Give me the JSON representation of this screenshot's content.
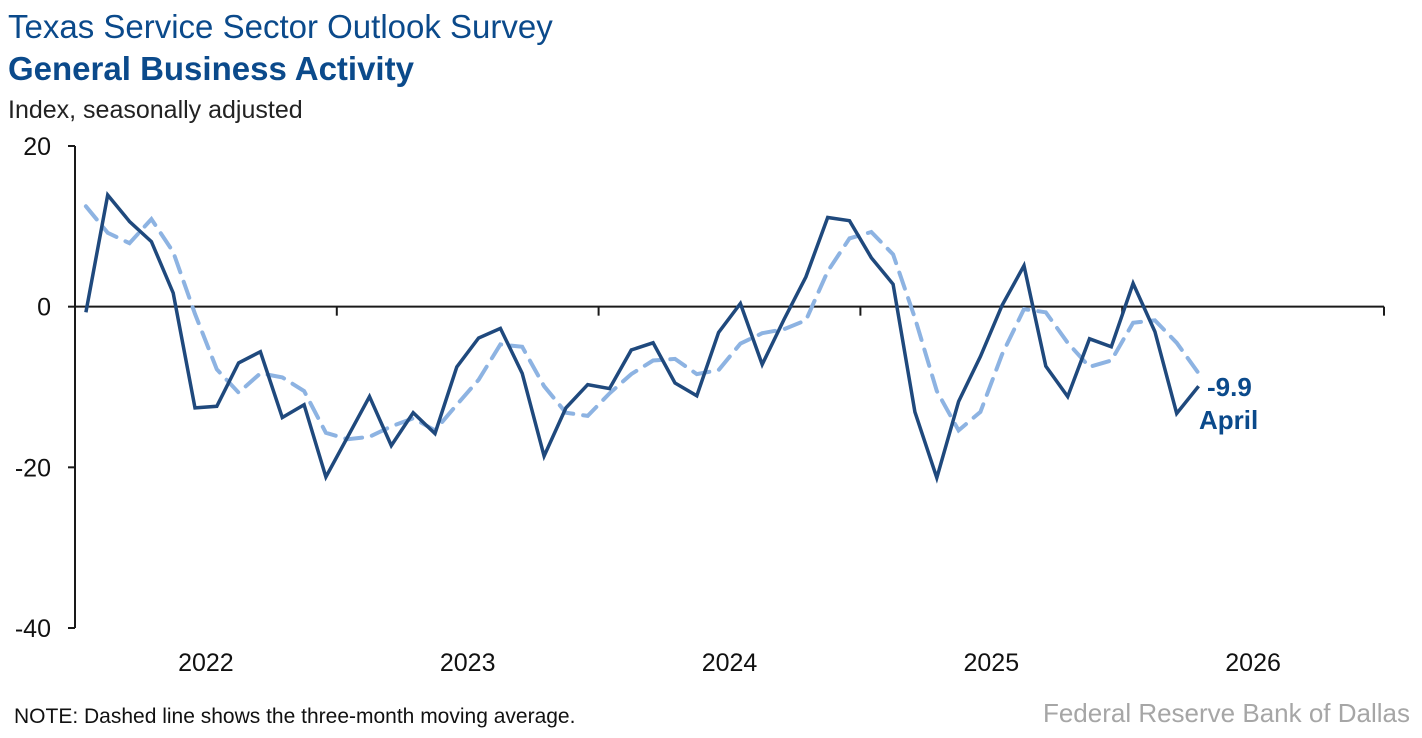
{
  "header": {
    "title": "Texas Service Sector Outlook Survey",
    "subtitle": "General Business Activity",
    "unit": "Index, seasonally adjusted"
  },
  "footer": {
    "note": "NOTE: Dashed line shows the three-month moving average.",
    "source": "Federal Reserve Bank of Dallas"
  },
  "chart_data": {
    "type": "line",
    "title": "General Business Activity",
    "ylabel": "Index, seasonally adjusted",
    "ylim": [
      -40,
      20
    ],
    "yticks": [
      "20",
      "0",
      "-20",
      "-40"
    ],
    "xticks": [
      "2022",
      "2023",
      "2024",
      "2025",
      "2026"
    ],
    "xrange": [
      "2022-01",
      "2026-12"
    ],
    "grid": false,
    "x_start": "2022-01",
    "frequency": "monthly",
    "colors": {
      "index": "#1f497d",
      "moving_average": "#8db3e2",
      "annotation": "#0b4a8b"
    },
    "series": [
      {
        "style": "solid",
        "values": [
          -0.7,
          13.9,
          10.6,
          8.1,
          1.7,
          -12.6,
          -12.4,
          -7.0,
          -5.6,
          -13.8,
          -12.2,
          -21.2,
          -16.2,
          -11.2,
          -17.3,
          -13.2,
          -15.8,
          -7.5,
          -3.9,
          -2.7,
          -8.3,
          -18.6,
          -12.6,
          -9.7,
          -10.2,
          -5.4,
          -4.5,
          -9.5,
          -11.1,
          -3.2,
          0.4,
          -7.2,
          -1.6,
          3.7,
          11.1,
          10.7,
          6.1,
          2.8,
          -13.1,
          -21.3,
          -11.8,
          -6.2,
          0.2,
          5.1,
          -7.4,
          -11.2,
          -4.0,
          -5.0,
          2.9,
          -3.1,
          -13.3,
          -9.9
        ]
      },
      {
        "style": "dashed",
        "values": [
          12.5,
          9.2,
          7.9,
          10.9,
          6.8,
          -0.9,
          -7.8,
          -10.7,
          -8.3,
          -8.8,
          -10.5,
          -15.7,
          -16.5,
          -16.2,
          -14.9,
          -13.9,
          -15.4,
          -12.2,
          -9.1,
          -4.7,
          -5.0,
          -9.9,
          -13.2,
          -13.6,
          -10.8,
          -8.4,
          -6.7,
          -6.5,
          -8.4,
          -7.9,
          -4.6,
          -3.3,
          -2.8,
          -1.7,
          4.4,
          8.5,
          9.3,
          6.5,
          -1.4,
          -10.5,
          -15.4,
          -13.1,
          -5.9,
          -0.3,
          -0.7,
          -4.5,
          -7.5,
          -6.7,
          -2.0,
          -1.7,
          -4.5,
          -8.3
        ]
      }
    ],
    "annotation": {
      "value": "-9.9",
      "label": "April"
    }
  }
}
